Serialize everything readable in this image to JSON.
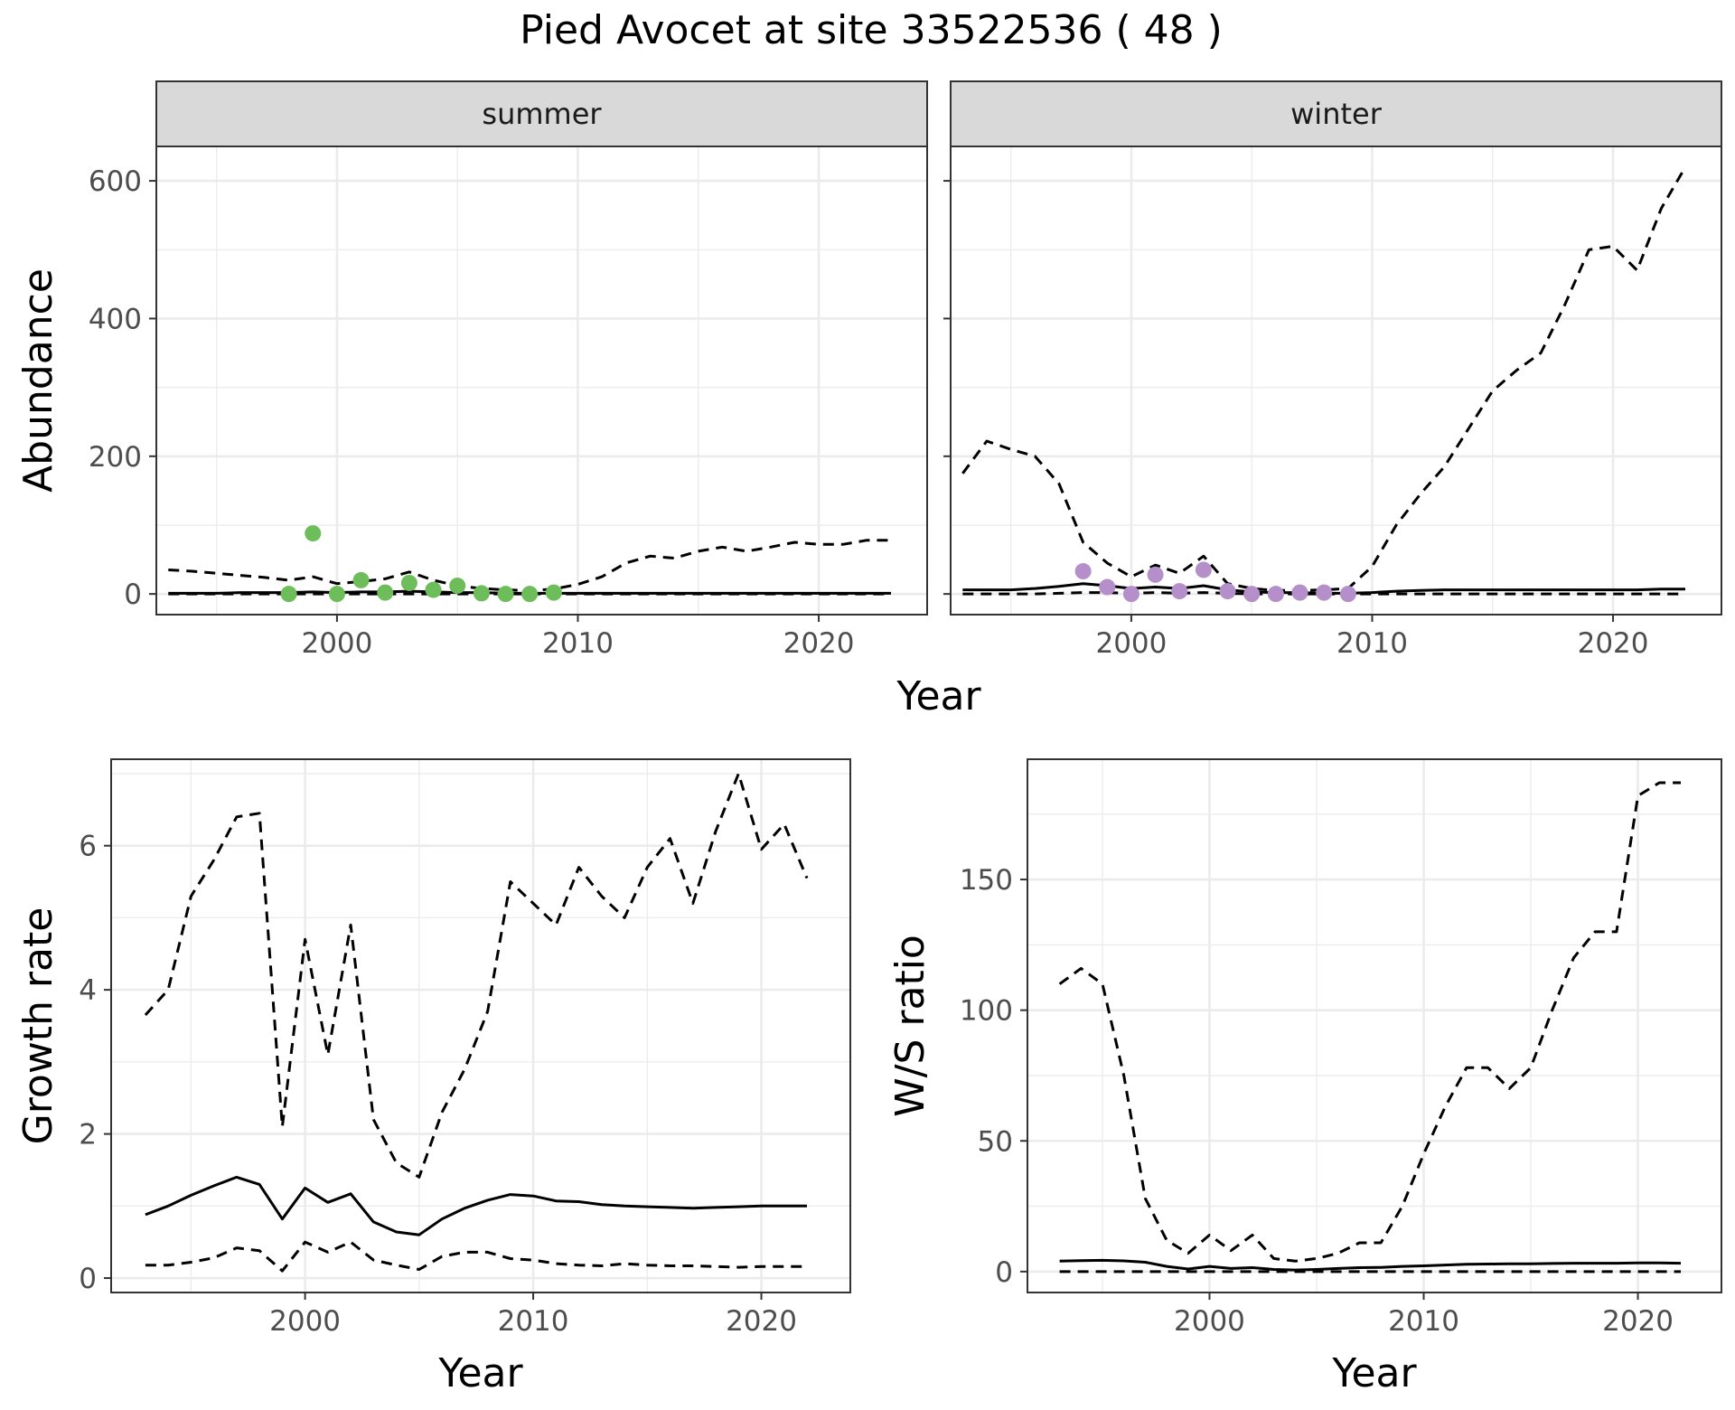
{
  "title": "Pied Avocet at site 33522536 ( 48 )",
  "colors": {
    "summer_points": "#6dbd5b",
    "winter_points": "#b48fca",
    "line": "#000000",
    "strip_fill": "#d9d9d9",
    "grid": "#ebebeb"
  },
  "chart_data": [
    {
      "id": "abundance-summer",
      "type": "line",
      "facet": "summer",
      "xlabel": "Year",
      "ylabel": "Abundance",
      "xlim": [
        1992.5,
        2024.5
      ],
      "ylim": [
        -30,
        650
      ],
      "xticks": [
        2000,
        2010,
        2020
      ],
      "yticks": [
        0,
        200,
        400,
        600
      ],
      "grid": true,
      "series": [
        {
          "role": "upper",
          "style": "dashed",
          "x": [
            1993,
            1994,
            1995,
            1996,
            1997,
            1998,
            1999,
            2000,
            2001,
            2002,
            2003,
            2004,
            2005,
            2006,
            2007,
            2008,
            2009,
            2010,
            2011,
            2012,
            2013,
            2014,
            2015,
            2016,
            2017,
            2018,
            2019,
            2020,
            2021,
            2022,
            2023
          ],
          "y": [
            35,
            33,
            30,
            27,
            24,
            20,
            25,
            15,
            18,
            22,
            32,
            20,
            12,
            8,
            6,
            5,
            7,
            14,
            25,
            45,
            55,
            52,
            62,
            68,
            62,
            68,
            75,
            72,
            72,
            78,
            78
          ]
        },
        {
          "role": "estimate",
          "style": "solid",
          "x": [
            1993,
            1994,
            1995,
            1996,
            1997,
            1998,
            1999,
            2000,
            2001,
            2002,
            2003,
            2004,
            2005,
            2006,
            2007,
            2008,
            2009,
            2010,
            2011,
            2012,
            2013,
            2014,
            2015,
            2016,
            2017,
            2018,
            2019,
            2020,
            2021,
            2022,
            2023
          ],
          "y": [
            1,
            1,
            1,
            2,
            2,
            2,
            3,
            2,
            3,
            3,
            4,
            3,
            2,
            2,
            1,
            1,
            1,
            1,
            1,
            1,
            1,
            1,
            1,
            1,
            1,
            1,
            1,
            1,
            1,
            1,
            1
          ]
        },
        {
          "role": "lower",
          "style": "dashed",
          "x": [
            1993,
            1994,
            1995,
            1996,
            1997,
            1998,
            1999,
            2000,
            2001,
            2002,
            2003,
            2004,
            2005,
            2006,
            2007,
            2008,
            2009,
            2010,
            2011,
            2012,
            2013,
            2014,
            2015,
            2016,
            2017,
            2018,
            2019,
            2020,
            2021,
            2022,
            2023
          ],
          "y": [
            0,
            0,
            0,
            0,
            0,
            0,
            0,
            0,
            0,
            0,
            0,
            0,
            0,
            0,
            0,
            0,
            0,
            0,
            0,
            0,
            0,
            0,
            0,
            0,
            0,
            0,
            0,
            0,
            0,
            0,
            0
          ]
        }
      ],
      "points": {
        "x": [
          1998,
          1999,
          2000,
          2001,
          2002,
          2003,
          2004,
          2005,
          2006,
          2007,
          2008,
          2009
        ],
        "y": [
          0,
          88,
          0,
          20,
          2,
          16,
          6,
          12,
          1,
          0,
          0,
          2
        ]
      }
    },
    {
      "id": "abundance-winter",
      "type": "line",
      "facet": "winter",
      "xlim": [
        1992.5,
        2024.5
      ],
      "ylim": [
        -30,
        650
      ],
      "xticks": [
        2000,
        2010,
        2020
      ],
      "yticks": [
        0,
        200,
        400,
        600
      ],
      "grid": true,
      "series": [
        {
          "role": "upper",
          "style": "dashed",
          "x": [
            1993,
            1994,
            1995,
            1996,
            1997,
            1998,
            1999,
            2000,
            2001,
            2002,
            2003,
            2004,
            2005,
            2006,
            2007,
            2008,
            2009,
            2010,
            2011,
            2012,
            2013,
            2014,
            2015,
            2016,
            2017,
            2018,
            2019,
            2020,
            2021,
            2022,
            2023
          ],
          "y": [
            175,
            222,
            210,
            200,
            160,
            75,
            45,
            25,
            42,
            30,
            55,
            15,
            8,
            5,
            5,
            6,
            8,
            40,
            100,
            145,
            185,
            240,
            295,
            325,
            350,
            420,
            500,
            505,
            470,
            560,
            620
          ]
        },
        {
          "role": "estimate",
          "style": "solid",
          "x": [
            1993,
            1994,
            1995,
            1996,
            1997,
            1998,
            1999,
            2000,
            2001,
            2002,
            2003,
            2004,
            2005,
            2006,
            2007,
            2008,
            2009,
            2010,
            2011,
            2012,
            2013,
            2014,
            2015,
            2016,
            2017,
            2018,
            2019,
            2020,
            2021,
            2022,
            2023
          ],
          "y": [
            6,
            6,
            6,
            8,
            11,
            15,
            12,
            8,
            10,
            8,
            12,
            6,
            3,
            2,
            2,
            1,
            1,
            2,
            4,
            5,
            6,
            6,
            6,
            6,
            6,
            6,
            6,
            6,
            6,
            7,
            7
          ]
        },
        {
          "role": "lower",
          "style": "dashed",
          "x": [
            1993,
            1994,
            1995,
            1996,
            1997,
            1998,
            1999,
            2000,
            2001,
            2002,
            2003,
            2004,
            2005,
            2006,
            2007,
            2008,
            2009,
            2010,
            2011,
            2012,
            2013,
            2014,
            2015,
            2016,
            2017,
            2018,
            2019,
            2020,
            2021,
            2022,
            2023
          ],
          "y": [
            0,
            0,
            0,
            0,
            1,
            2,
            2,
            1,
            2,
            1,
            2,
            1,
            0,
            0,
            0,
            0,
            0,
            0,
            0,
            0,
            0,
            0,
            0,
            0,
            0,
            0,
            0,
            0,
            0,
            0,
            0
          ]
        }
      ],
      "points": {
        "x": [
          1998,
          1999,
          2000,
          2001,
          2002,
          2003,
          2004,
          2005,
          2006,
          2007,
          2008,
          2009
        ],
        "y": [
          33,
          10,
          0,
          28,
          4,
          35,
          4,
          0,
          0,
          2,
          2,
          0
        ]
      }
    },
    {
      "id": "growth-rate",
      "type": "line",
      "xlabel": "Year",
      "ylabel": "Growth rate",
      "xlim": [
        1991.5,
        2023.9
      ],
      "ylim": [
        -0.2,
        7.2
      ],
      "xticks": [
        2000,
        2010,
        2020
      ],
      "yticks": [
        0,
        2,
        4,
        6
      ],
      "grid": true,
      "series": [
        {
          "role": "upper",
          "style": "dashed",
          "x": [
            1993,
            1994,
            1995,
            1996,
            1997,
            1998,
            1999,
            2000,
            2001,
            2002,
            2003,
            2004,
            2005,
            2006,
            2007,
            2008,
            2009,
            2010,
            2011,
            2012,
            2013,
            2014,
            2015,
            2016,
            2017,
            2018,
            2019,
            2020,
            2021,
            2022
          ],
          "y": [
            3.65,
            4.0,
            5.3,
            5.8,
            6.4,
            6.45,
            2.1,
            4.7,
            3.1,
            4.9,
            2.2,
            1.6,
            1.4,
            2.3,
            2.9,
            3.7,
            5.5,
            5.2,
            4.9,
            5.7,
            5.3,
            5.0,
            5.7,
            6.1,
            5.2,
            6.2,
            7.0,
            5.95,
            6.3,
            5.55
          ]
        },
        {
          "role": "estimate",
          "style": "solid",
          "x": [
            1993,
            1994,
            1995,
            1996,
            1997,
            1998,
            1999,
            2000,
            2001,
            2002,
            2003,
            2004,
            2005,
            2006,
            2007,
            2008,
            2009,
            2010,
            2011,
            2012,
            2013,
            2014,
            2015,
            2016,
            2017,
            2018,
            2019,
            2020,
            2021,
            2022
          ],
          "y": [
            0.88,
            1.0,
            1.15,
            1.28,
            1.4,
            1.3,
            0.82,
            1.25,
            1.05,
            1.17,
            0.78,
            0.64,
            0.6,
            0.82,
            0.97,
            1.08,
            1.16,
            1.14,
            1.07,
            1.06,
            1.02,
            1.0,
            0.99,
            0.98,
            0.97,
            0.98,
            0.99,
            1.0,
            1.0,
            1.0
          ]
        },
        {
          "role": "lower",
          "style": "dashed",
          "x": [
            1993,
            1994,
            1995,
            1996,
            1997,
            1998,
            1999,
            2000,
            2001,
            2002,
            2003,
            2004,
            2005,
            2006,
            2007,
            2008,
            2009,
            2010,
            2011,
            2012,
            2013,
            2014,
            2015,
            2016,
            2017,
            2018,
            2019,
            2020,
            2021,
            2022
          ],
          "y": [
            0.18,
            0.18,
            0.22,
            0.28,
            0.42,
            0.38,
            0.1,
            0.5,
            0.36,
            0.5,
            0.25,
            0.18,
            0.12,
            0.3,
            0.36,
            0.36,
            0.27,
            0.25,
            0.2,
            0.18,
            0.17,
            0.2,
            0.18,
            0.17,
            0.17,
            0.16,
            0.15,
            0.16,
            0.16,
            0.16
          ]
        }
      ]
    },
    {
      "id": "ws-ratio",
      "type": "line",
      "xlabel": "Year",
      "ylabel": "W/S ratio",
      "xlim": [
        1991.5,
        2023.9
      ],
      "ylim": [
        -8,
        196
      ],
      "xticks": [
        2000,
        2010,
        2020
      ],
      "yticks": [
        0,
        50,
        100,
        150
      ],
      "grid": true,
      "series": [
        {
          "role": "upper",
          "style": "dashed",
          "x": [
            1993,
            1994,
            1995,
            1996,
            1997,
            1998,
            1999,
            2000,
            2001,
            2002,
            2003,
            2004,
            2005,
            2006,
            2007,
            2008,
            2009,
            2010,
            2011,
            2012,
            2013,
            2014,
            2015,
            2016,
            2017,
            2018,
            2019,
            2020,
            2021,
            2022
          ],
          "y": [
            110,
            116,
            110,
            75,
            28,
            12,
            7,
            14,
            8,
            14,
            5,
            4,
            5,
            7,
            11,
            11,
            25,
            45,
            63,
            78,
            78,
            70,
            78,
            100,
            120,
            130,
            130,
            182,
            187,
            187
          ]
        },
        {
          "role": "estimate",
          "style": "solid",
          "x": [
            1993,
            1994,
            1995,
            1996,
            1997,
            1998,
            1999,
            2000,
            2001,
            2002,
            2003,
            2004,
            2005,
            2006,
            2007,
            2008,
            2009,
            2010,
            2011,
            2012,
            2013,
            2014,
            2015,
            2016,
            2017,
            2018,
            2019,
            2020,
            2021,
            2022
          ],
          "y": [
            4.0,
            4.2,
            4.3,
            4.1,
            3.6,
            2.0,
            1.0,
            2.0,
            1.2,
            1.5,
            0.8,
            0.6,
            0.8,
            1.2,
            1.5,
            1.6,
            2.0,
            2.2,
            2.5,
            2.8,
            2.9,
            3.0,
            3.0,
            3.1,
            3.2,
            3.2,
            3.2,
            3.3,
            3.3,
            3.2
          ]
        },
        {
          "role": "lower",
          "style": "dashed",
          "x": [
            1993,
            1994,
            1995,
            1996,
            1997,
            1998,
            1999,
            2000,
            2001,
            2002,
            2003,
            2004,
            2005,
            2006,
            2007,
            2008,
            2009,
            2010,
            2011,
            2012,
            2013,
            2014,
            2015,
            2016,
            2017,
            2018,
            2019,
            2020,
            2021,
            2022
          ],
          "y": [
            0,
            0,
            0,
            0,
            0,
            0,
            0,
            0,
            0,
            0,
            0,
            0,
            0,
            0,
            0,
            0,
            0,
            0,
            0,
            0,
            0,
            0,
            0,
            0,
            0,
            0,
            0,
            0,
            0,
            0
          ]
        }
      ]
    }
  ]
}
